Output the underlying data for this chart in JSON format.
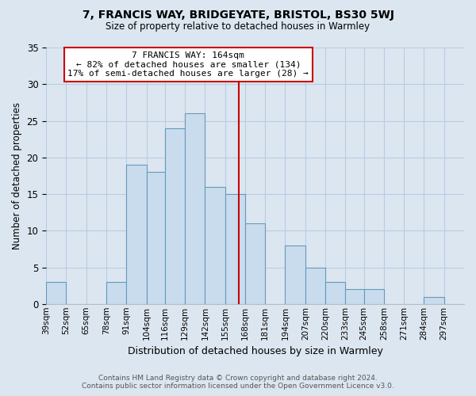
{
  "title": "7, FRANCIS WAY, BRIDGEYATE, BRISTOL, BS30 5WJ",
  "subtitle": "Size of property relative to detached houses in Warmley",
  "xlabel": "Distribution of detached houses by size in Warmley",
  "ylabel": "Number of detached properties",
  "footer_line1": "Contains HM Land Registry data © Crown copyright and database right 2024.",
  "footer_line2": "Contains public sector information licensed under the Open Government Licence v3.0.",
  "bar_labels": [
    "39sqm",
    "52sqm",
    "65sqm",
    "78sqm",
    "91sqm",
    "104sqm",
    "116sqm",
    "129sqm",
    "142sqm",
    "155sqm",
    "168sqm",
    "181sqm",
    "194sqm",
    "207sqm",
    "220sqm",
    "233sqm",
    "245sqm",
    "258sqm",
    "271sqm",
    "284sqm",
    "297sqm"
  ],
  "bar_values": [
    3,
    0,
    0,
    3,
    19,
    18,
    24,
    26,
    16,
    15,
    11,
    0,
    8,
    5,
    3,
    2,
    2,
    0,
    0,
    1,
    0
  ],
  "bin_edges": [
    39,
    52,
    65,
    78,
    91,
    104,
    116,
    129,
    142,
    155,
    168,
    181,
    194,
    207,
    220,
    233,
    245,
    258,
    271,
    284,
    297,
    310
  ],
  "bar_color": "#c9dcee",
  "bar_edge_color": "#6699bb",
  "vline_x": 164,
  "vline_color": "#cc0000",
  "annotation_title": "7 FRANCIS WAY: 164sqm",
  "annotation_line1": "← 82% of detached houses are smaller (134)",
  "annotation_line2": "17% of semi-detached houses are larger (28) →",
  "annotation_box_color": "#ffffff",
  "annotation_box_edge": "#cc0000",
  "ylim": [
    0,
    35
  ],
  "yticks": [
    0,
    5,
    10,
    15,
    20,
    25,
    30,
    35
  ],
  "bg_color": "#dce6f0",
  "plot_bg_color": "#dce6f0",
  "grid_color": "#b8cce4"
}
